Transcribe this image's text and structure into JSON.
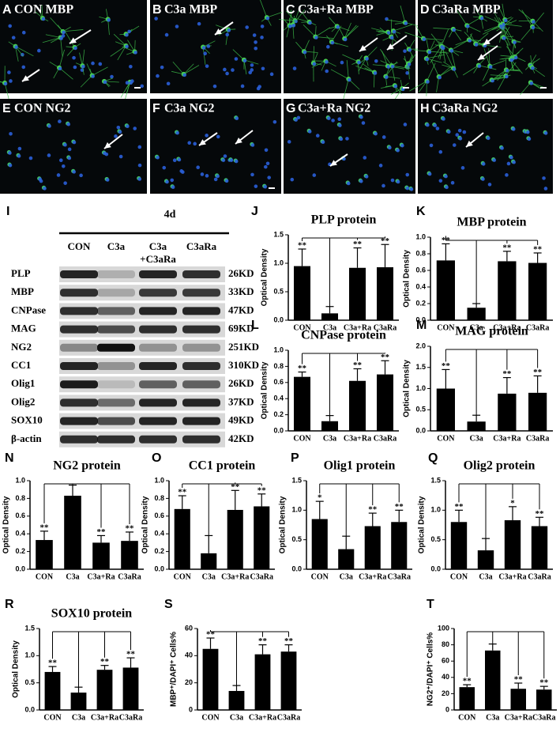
{
  "panels": [
    {
      "letter": "A",
      "label": "CON  MBP"
    },
    {
      "letter": "B",
      "label": "C3a  MBP"
    },
    {
      "letter": "C",
      "label": "C3a+Ra  MBP"
    },
    {
      "letter": "D",
      "label": "C3aRa  MBP"
    },
    {
      "letter": "E",
      "label": "CON  NG2"
    },
    {
      "letter": "F",
      "label": "C3a  NG2"
    },
    {
      "letter": "G",
      "label": "C3a+Ra  NG2"
    },
    {
      "letter": "H",
      "label": "C3aRa  NG2"
    }
  ],
  "blot": {
    "letter": "I",
    "time": "4d",
    "columns": [
      "CON",
      "C3a",
      "C3a",
      "C3aRa"
    ],
    "column_sub": "+C3aRa",
    "rows": [
      {
        "protein": "PLP",
        "size": "26KD"
      },
      {
        "protein": "MBP",
        "size": "33KD"
      },
      {
        "protein": "CNPase",
        "size": "47KD"
      },
      {
        "protein": "MAG",
        "size": "69KD"
      },
      {
        "protein": "NG2",
        "size": "251KD"
      },
      {
        "protein": "CC1",
        "size": "310KD"
      },
      {
        "protein": "Olig1",
        "size": "26KD"
      },
      {
        "protein": "Olig2",
        "size": "37KD"
      },
      {
        "protein": "SOX10",
        "size": "49KD"
      },
      {
        "protein": "β-actin",
        "size": "42KD"
      }
    ]
  },
  "chart_data": [
    {
      "type": "bar",
      "letter": "J",
      "title": "PLP protein",
      "ylabel": "Optical Density",
      "categories": [
        "CON",
        "C3a",
        "C3a+Ra",
        "C3aRa"
      ],
      "values": [
        0.95,
        0.12,
        0.92,
        0.93
      ],
      "errors": [
        0.3,
        0.12,
        0.35,
        0.4
      ],
      "stars": [
        "**",
        null,
        "**",
        "**"
      ],
      "color": "#000000",
      "ylim": [
        0,
        1.5
      ],
      "yticks": [
        {
          "value": 0,
          "label": "0.0"
        },
        0.5,
        {
          "value": 1,
          "label": "1.0"
        },
        1.5
      ]
    },
    {
      "type": "bar",
      "letter": "K",
      "title": "MBP protein",
      "ylabel": "Optical Density",
      "categories": [
        "CON",
        "C3a",
        "C3a+Ra",
        "C3aRa"
      ],
      "values": [
        0.72,
        0.15,
        0.71,
        0.69
      ],
      "errors": [
        0.2,
        0.05,
        0.12,
        0.12
      ],
      "stars": [
        "**",
        null,
        "**",
        "**"
      ],
      "color": "#000000",
      "ylim": [
        0,
        1
      ],
      "yticks": [
        {
          "value": 0,
          "label": "0.0"
        },
        0.2,
        0.4,
        0.6,
        0.8,
        {
          "value": 1,
          "label": "1.0"
        }
      ]
    },
    {
      "type": "bar",
      "letter": "L",
      "title": "CNPase protein",
      "ylabel": "Optical Density",
      "categories": [
        "CON",
        "C3a",
        "C3a+Ra",
        "C3aRa"
      ],
      "values": [
        0.67,
        0.12,
        0.62,
        0.7
      ],
      "errors": [
        0.06,
        0.07,
        0.15,
        0.17
      ],
      "stars": [
        "**",
        null,
        "**",
        "**"
      ],
      "color": "#000000",
      "ylim": [
        0,
        1
      ],
      "yticks": [
        {
          "value": 0,
          "label": "0.0"
        },
        0.2,
        0.4,
        0.6,
        0.8,
        {
          "value": 1,
          "label": "1.0"
        }
      ]
    },
    {
      "type": "bar",
      "letter": "M",
      "title": "MAG protein",
      "ylabel": "Optical Density",
      "categories": [
        "CON",
        "C3a",
        "C3a+Ra",
        "C3aRa"
      ],
      "values": [
        1.0,
        0.22,
        0.88,
        0.9
      ],
      "errors": [
        0.45,
        0.15,
        0.38,
        0.4
      ],
      "stars": [
        "**",
        null,
        "**",
        "**"
      ],
      "color": "#000000",
      "ylim": [
        0,
        2
      ],
      "yticks": [
        {
          "value": 0,
          "label": "0.0"
        },
        0.5,
        {
          "value": 1,
          "label": "1.0"
        },
        1.5,
        {
          "value": 2,
          "label": "2.0"
        }
      ]
    },
    {
      "type": "bar",
      "letter": "N",
      "title": "NG2 protein",
      "ylabel": "Optical Density",
      "categories": [
        "CON",
        "C3a",
        "C3a+Ra",
        "C3aRa"
      ],
      "values": [
        0.33,
        0.83,
        0.3,
        0.32
      ],
      "errors": [
        0.1,
        0.12,
        0.08,
        0.1
      ],
      "stars": [
        "**",
        null,
        "**",
        "**"
      ],
      "color": "#000000",
      "ylim": [
        0,
        1
      ],
      "yticks": [
        {
          "value": 0,
          "label": "0.0"
        },
        0.2,
        0.4,
        0.6,
        0.8,
        {
          "value": 1,
          "label": "1.0"
        }
      ]
    },
    {
      "type": "bar",
      "letter": "O",
      "title": "CC1 protein",
      "ylabel": "Optical Density",
      "categories": [
        "CON",
        "C3a",
        "C3a+Ra",
        "C3aRa"
      ],
      "values": [
        0.68,
        0.18,
        0.67,
        0.71
      ],
      "errors": [
        0.15,
        0.2,
        0.22,
        0.14
      ],
      "stars": [
        "**",
        null,
        "**",
        "**"
      ],
      "color": "#000000",
      "ylim": [
        0,
        1
      ],
      "yticks": [
        {
          "value": 0,
          "label": "0.0"
        },
        0.2,
        0.4,
        0.6,
        0.8,
        {
          "value": 1,
          "label": "1.0"
        }
      ]
    },
    {
      "type": "bar",
      "letter": "P",
      "title": "Olig1 protein",
      "ylabel": "Optical Density",
      "categories": [
        "CON",
        "C3a",
        "C3a+Ra",
        "C3aRa"
      ],
      "values": [
        0.85,
        0.34,
        0.73,
        0.8
      ],
      "errors": [
        0.3,
        0.22,
        0.22,
        0.2
      ],
      "stars": [
        "*",
        null,
        "**",
        "**"
      ],
      "color": "#000000",
      "ylim": [
        0,
        1.5
      ],
      "yticks": [
        {
          "value": 0,
          "label": "0.0"
        },
        0.5,
        {
          "value": 1,
          "label": "1.0"
        },
        1.5
      ]
    },
    {
      "type": "bar",
      "letter": "Q",
      "title": "Olig2 protein",
      "ylabel": "Optical Density",
      "categories": [
        "CON",
        "C3a",
        "C3a+Ra",
        "C3aRa"
      ],
      "values": [
        0.8,
        0.32,
        0.83,
        0.73
      ],
      "errors": [
        0.2,
        0.2,
        0.23,
        0.15
      ],
      "stars": [
        "**",
        null,
        "*",
        "**"
      ],
      "color": "#000000",
      "ylim": [
        0,
        1.5
      ],
      "yticks": [
        {
          "value": 0,
          "label": "0.0"
        },
        0.5,
        {
          "value": 1,
          "label": "1.0"
        },
        1.5
      ]
    },
    {
      "type": "bar",
      "letter": "R",
      "title": "SOX10 protein",
      "ylabel": "Optical Density",
      "categories": [
        "CON",
        "C3a",
        "C3a+Ra",
        "C3aRa"
      ],
      "values": [
        0.7,
        0.32,
        0.74,
        0.78
      ],
      "errors": [
        0.1,
        0.1,
        0.08,
        0.18
      ],
      "stars": [
        "**",
        null,
        "**",
        "**"
      ],
      "color": "#000000",
      "ylim": [
        0,
        1.5
      ],
      "yticks": [
        {
          "value": 0,
          "label": "0.0"
        },
        0.5,
        {
          "value": 1,
          "label": "1.0"
        },
        1.5
      ]
    },
    {
      "type": "bar",
      "letter": "S",
      "ylabel": "MBP⁺/DAPI⁺ Cells%",
      "categories": [
        "CON",
        "C3a",
        "C3a+Ra",
        "C3aRa"
      ],
      "values": [
        45,
        14,
        41,
        43
      ],
      "errors": [
        8,
        4,
        7,
        5
      ],
      "stars": [
        "**",
        null,
        "**",
        "**"
      ],
      "color": "#000000",
      "ylim": [
        0,
        60
      ],
      "yticks": [
        0,
        20,
        40,
        60
      ]
    },
    {
      "type": "bar",
      "letter": "T",
      "ylabel": "NG2⁺/DAPI⁺ Cells%",
      "categories": [
        "CON",
        "C3a",
        "C3a+Ra",
        "C3aRa"
      ],
      "values": [
        28,
        73,
        26,
        25
      ],
      "errors": [
        3,
        8,
        7,
        4
      ],
      "stars": [
        "**",
        null,
        "**",
        "**"
      ],
      "color": "#000000",
      "ylim": [
        0,
        100
      ],
      "yticks": [
        0,
        20,
        40,
        60,
        80,
        100
      ]
    }
  ]
}
